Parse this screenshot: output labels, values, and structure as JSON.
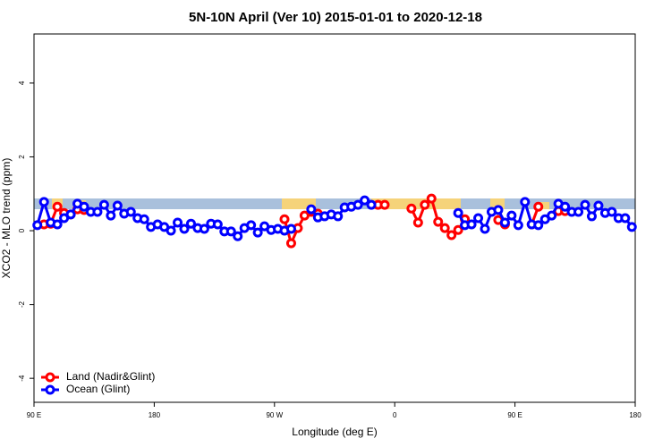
{
  "chart_data": {
    "type": "line",
    "title": "5N-10N April (Ver 10)   2015-01-01 to 2020-12-18",
    "x_label": "Longitude (deg E)",
    "y_label": "XCO2 - MLO trend (ppm)",
    "xlim": [
      90,
      540
    ],
    "xticks": [
      {
        "value": 90,
        "label": "90 E"
      },
      180,
      {
        "value": 270,
        "label": "90 W"
      },
      {
        "value": 360,
        "label": "0"
      },
      {
        "value": 450,
        "label": "90 E"
      },
      {
        "value": 540,
        "label": "180"
      }
    ],
    "ylim": [
      -4.65,
      5.33
    ],
    "yticks": [
      -4,
      -2,
      0,
      2,
      4
    ],
    "legend": "bottomleft",
    "x": [
      92.5,
      97.5,
      102.5,
      107.5,
      112.5,
      117.5,
      122.5,
      127.5,
      132.5,
      137.5,
      142.5,
      147.5,
      152.5,
      157.5,
      162.5,
      167.5,
      172.5,
      177.5,
      182.5,
      187.5,
      192.5,
      197.5,
      202.5,
      207.5,
      212.5,
      217.5,
      222.5,
      227.5,
      232.5,
      237.5,
      242.5,
      247.5,
      252.5,
      257.5,
      262.5,
      267.5,
      272.5,
      277.5,
      282.5,
      287.5,
      292.5,
      297.5,
      302.5,
      307.5,
      312.5,
      317.5,
      322.5,
      327.5,
      332.5,
      337.5,
      342.5,
      347.5,
      352.5,
      357.5,
      362.5,
      367.5,
      372.5,
      377.5,
      382.5,
      387.5,
      392.5,
      397.5,
      402.5,
      407.5,
      412.5,
      417.5,
      422.5,
      427.5,
      432.5,
      437.5,
      442.5,
      447.5,
      452.5,
      457.5,
      462.5,
      467.5,
      472.5,
      477.5,
      482.5,
      487.5,
      492.5,
      497.5,
      502.5,
      507.5,
      512.5,
      517.5,
      522.5,
      527.5,
      532.5,
      537.5
    ],
    "series": [
      {
        "name": "Land (Nadir&Glint)",
        "color": "#ff0000",
        "values": [
          null,
          0.17,
          0.19,
          0.65,
          0.48,
          0.44,
          0.58,
          0.56,
          null,
          null,
          null,
          null,
          null,
          null,
          null,
          null,
          null,
          null,
          null,
          null,
          null,
          null,
          null,
          null,
          null,
          null,
          null,
          null,
          null,
          null,
          null,
          null,
          null,
          null,
          null,
          null,
          null,
          0.31,
          -0.34,
          0.07,
          0.41,
          0.51,
          0.46,
          null,
          null,
          null,
          null,
          null,
          null,
          null,
          null,
          0.7,
          0.7,
          null,
          null,
          null,
          0.6,
          0.22,
          0.7,
          0.87,
          0.24,
          0.07,
          -0.12,
          0.02,
          0.31,
          null,
          null,
          null,
          null,
          0.29,
          0.17,
          null,
          null,
          null,
          0.17,
          0.65,
          null,
          null,
          0.53,
          0.53,
          null,
          null,
          null,
          null,
          null,
          null,
          null,
          null,
          null,
          null
        ]
      },
      {
        "name": "Ocean (Glint)",
        "color": "#0000ff",
        "values": [
          0.15,
          0.78,
          0.22,
          0.17,
          0.34,
          0.44,
          0.73,
          0.65,
          0.51,
          0.51,
          0.7,
          0.41,
          0.68,
          0.46,
          0.51,
          0.34,
          0.31,
          0.1,
          0.17,
          0.1,
          0.0,
          0.22,
          0.05,
          0.19,
          0.07,
          0.05,
          0.19,
          0.17,
          -0.02,
          -0.02,
          -0.15,
          0.07,
          0.15,
          -0.05,
          0.12,
          0.02,
          0.05,
          0.0,
          0.05,
          null,
          null,
          0.58,
          0.36,
          0.39,
          0.44,
          0.39,
          0.63,
          0.65,
          0.7,
          0.82,
          0.7,
          null,
          null,
          null,
          null,
          null,
          null,
          null,
          null,
          null,
          null,
          null,
          null,
          0.48,
          0.15,
          0.17,
          0.34,
          0.05,
          0.51,
          0.56,
          0.22,
          0.41,
          0.15,
          0.78,
          0.17,
          0.15,
          0.31,
          0.41,
          0.73,
          0.65,
          0.51,
          0.51,
          0.7,
          0.39,
          0.68,
          0.48,
          0.51,
          0.34,
          0.34,
          0.1
        ]
      }
    ]
  }
}
